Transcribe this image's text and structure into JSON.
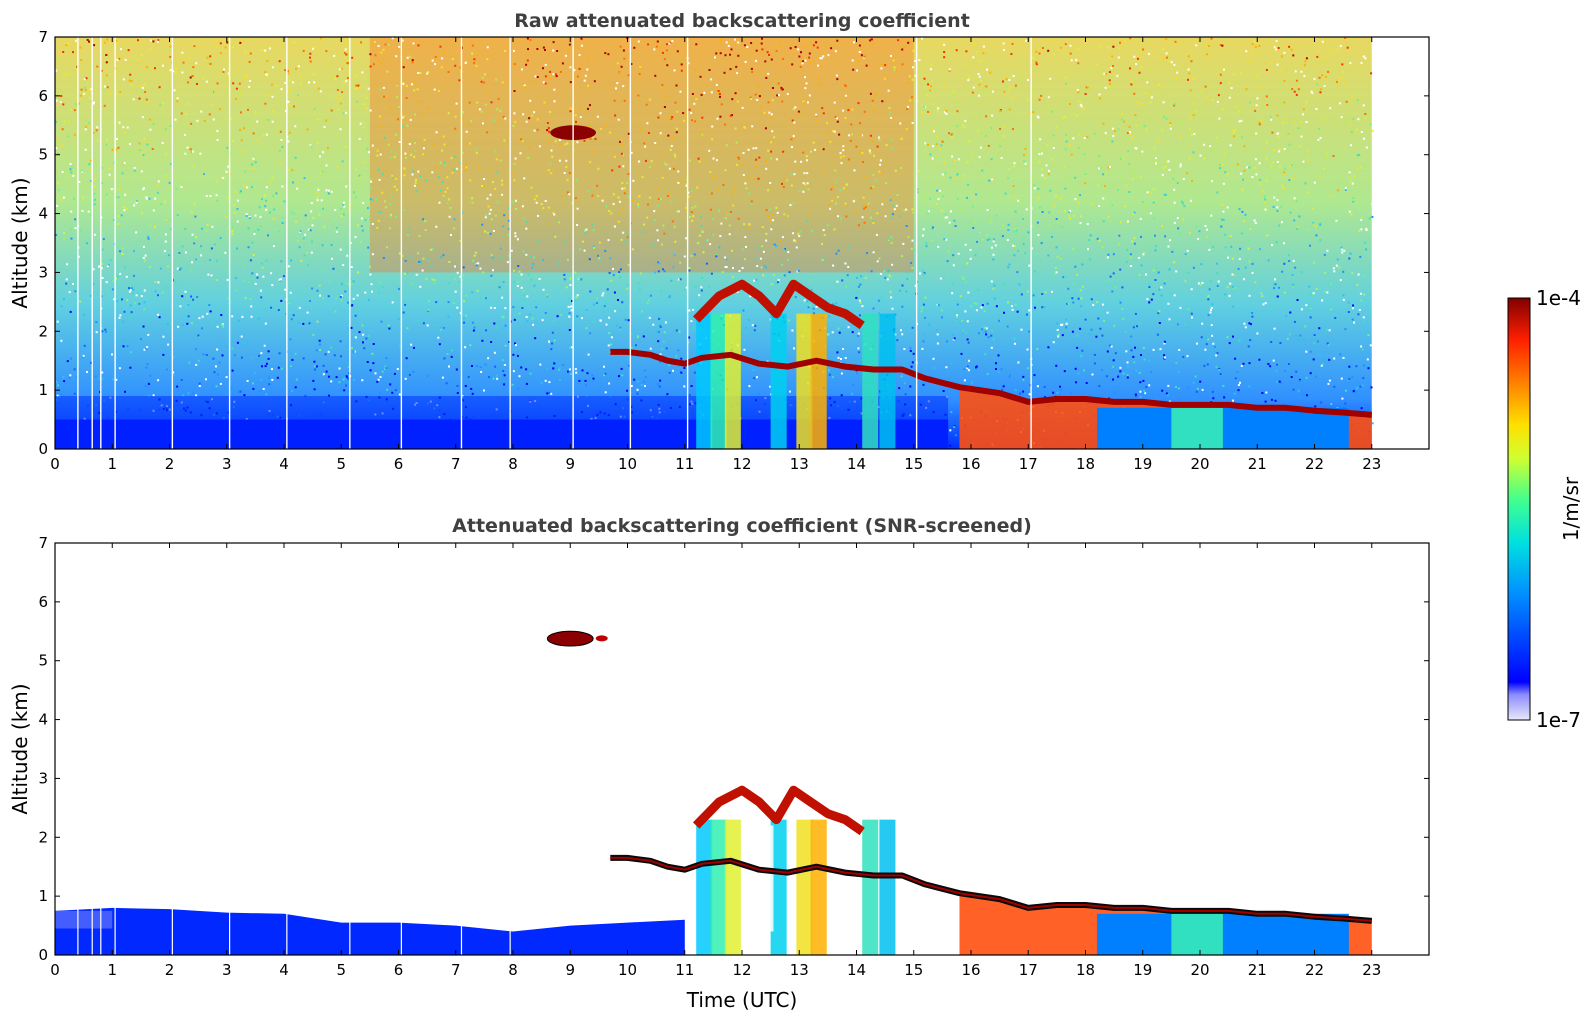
{
  "chart_data": [
    {
      "type": "heatmap",
      "title": "Raw attenuated backscattering coefficient",
      "xlabel": "",
      "ylabel": "Altitude (km)",
      "xlim": [
        0,
        24
      ],
      "ylim": [
        0,
        7
      ],
      "x_ticks": [
        "0",
        "1",
        "2",
        "3",
        "4",
        "5",
        "6",
        "7",
        "8",
        "9",
        "10",
        "11",
        "12",
        "13",
        "14",
        "15",
        "16",
        "17",
        "18",
        "19",
        "20",
        "21",
        "22",
        "23"
      ],
      "y_ticks": [
        "0",
        "1",
        "2",
        "3",
        "4",
        "5",
        "6",
        "7"
      ],
      "data_time_range": [
        0,
        23
      ],
      "dropout_times": [
        0.4,
        0.65,
        0.8,
        1.05,
        2.05,
        3.05,
        4.05,
        5.15,
        6.05,
        7.1,
        7.95,
        9.05,
        10.05,
        11.05,
        15.05,
        17.05
      ],
      "cloud_base_profile": [
        [
          9.7,
          1.65
        ],
        [
          10.0,
          1.65
        ],
        [
          10.4,
          1.6
        ],
        [
          10.7,
          1.5
        ],
        [
          11.0,
          1.45
        ],
        [
          11.3,
          1.55
        ],
        [
          11.8,
          1.6
        ],
        [
          12.3,
          1.45
        ],
        [
          12.8,
          1.4
        ],
        [
          13.3,
          1.5
        ],
        [
          13.8,
          1.4
        ],
        [
          14.3,
          1.35
        ],
        [
          14.8,
          1.35
        ],
        [
          15.2,
          1.2
        ],
        [
          15.8,
          1.05
        ],
        [
          16.5,
          0.95
        ],
        [
          17.0,
          0.8
        ],
        [
          17.5,
          0.85
        ],
        [
          18.0,
          0.85
        ],
        [
          18.5,
          0.8
        ],
        [
          19.0,
          0.8
        ],
        [
          19.5,
          0.75
        ],
        [
          20.0,
          0.75
        ],
        [
          20.5,
          0.75
        ],
        [
          21.0,
          0.7
        ],
        [
          21.5,
          0.7
        ],
        [
          22.0,
          0.65
        ],
        [
          22.5,
          0.62
        ],
        [
          23.0,
          0.58
        ]
      ],
      "cloud_top_profile": [
        [
          11.2,
          2.2
        ],
        [
          11.6,
          2.6
        ],
        [
          12.0,
          2.8
        ],
        [
          12.3,
          2.6
        ],
        [
          12.6,
          2.3
        ],
        [
          12.9,
          2.8
        ],
        [
          13.2,
          2.6
        ],
        [
          13.5,
          2.4
        ],
        [
          13.8,
          2.3
        ],
        [
          14.1,
          2.1
        ]
      ],
      "elevated_layer": {
        "x": [
          8.5,
          9.6
        ],
        "y": [
          5.25,
          5.5
        ]
      }
    },
    {
      "type": "heatmap",
      "title": "Attenuated backscattering coefficient (SNR-screened)",
      "xlabel": "Time (UTC)",
      "ylabel": "Altitude (km)",
      "xlim": [
        0,
        24
      ],
      "ylim": [
        0,
        7
      ],
      "x_ticks": [
        "0",
        "1",
        "2",
        "3",
        "4",
        "5",
        "6",
        "7",
        "8",
        "9",
        "10",
        "11",
        "12",
        "13",
        "14",
        "15",
        "16",
        "17",
        "18",
        "19",
        "20",
        "21",
        "22",
        "23"
      ],
      "y_ticks": [
        "0",
        "1",
        "2",
        "3",
        "4",
        "5",
        "6",
        "7"
      ],
      "boundary_layer_top": [
        [
          0,
          0.75
        ],
        [
          1,
          0.8
        ],
        [
          2,
          0.78
        ],
        [
          3,
          0.72
        ],
        [
          4,
          0.7
        ],
        [
          5,
          0.55
        ],
        [
          6,
          0.55
        ],
        [
          7,
          0.5
        ],
        [
          8,
          0.4
        ],
        [
          9,
          0.5
        ],
        [
          10,
          0.55
        ],
        [
          11,
          0.6
        ]
      ]
    }
  ],
  "colorbar": {
    "max_label": "1e-4",
    "min_label": "1e-7",
    "unit_label": "1/m/sr",
    "scale": "log",
    "range": [
      1e-07,
      0.0001
    ],
    "colors": [
      "#e8e8f8",
      "#0000ff",
      "#00bfff",
      "#00ffd0",
      "#c0ff40",
      "#ffee00",
      "#ff8000",
      "#ff2000",
      "#800000"
    ]
  }
}
